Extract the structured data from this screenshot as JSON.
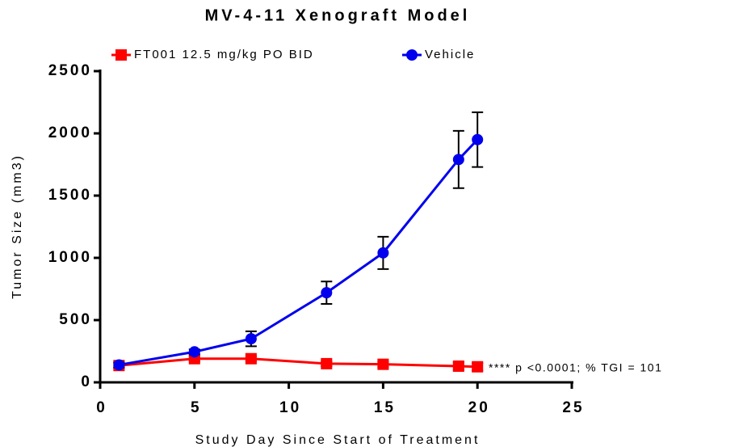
{
  "chart_data": {
    "type": "line",
    "title": "MV-4-11 Xenograft Model",
    "x_label": "Study Day Since Start of Treatment",
    "y_label": "Tumor Size (mm3)",
    "annotation": "**** p <0.0001; % TGI = 101",
    "x": [
      1,
      5,
      8,
      12,
      15,
      19,
      20
    ],
    "series": [
      {
        "name": "FT001 12.5 mg/kg PO BID",
        "color": "#ff0000",
        "marker": "square",
        "values": [
          135,
          190,
          190,
          150,
          145,
          130,
          125
        ],
        "errors": [
          20,
          20,
          20,
          20,
          20,
          30,
          30
        ]
      },
      {
        "name": "Vehicle",
        "color": "#0000ee",
        "marker": "circle",
        "values": [
          140,
          245,
          350,
          720,
          1040,
          1790,
          1950
        ],
        "errors": [
          20,
          20,
          60,
          90,
          130,
          230,
          220
        ]
      }
    ],
    "xlim": [
      0,
      25
    ],
    "xticks": [
      0,
      5,
      10,
      15,
      20,
      25
    ],
    "ylim": [
      0,
      2500
    ],
    "yticks": [
      0,
      500,
      1000,
      1500,
      2000,
      2500
    ]
  }
}
